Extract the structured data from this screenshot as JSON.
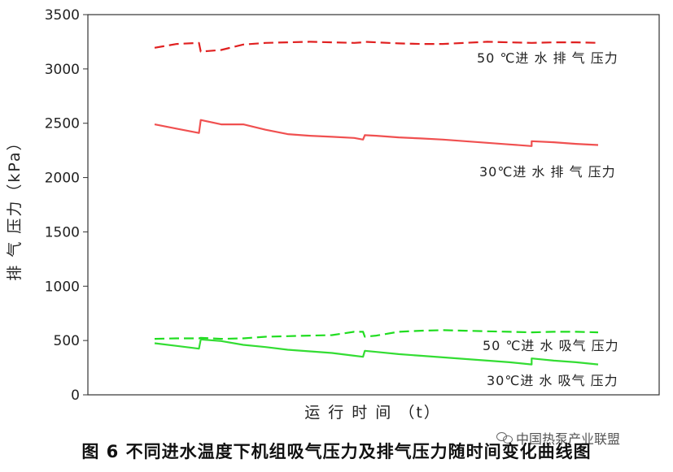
{
  "chart_data": {
    "type": "line",
    "xlabel": "运 行 时 间 （t）",
    "ylabel": "排 气 压力（kPa）",
    "ylim": [
      0,
      3500
    ],
    "yticks": [
      0,
      500,
      1000,
      1500,
      2000,
      2500,
      3000,
      3500
    ],
    "grid": false,
    "legend": "inline-labels",
    "x": [
      0,
      0.05,
      0.1,
      0.104,
      0.15,
      0.2,
      0.25,
      0.3,
      0.35,
      0.4,
      0.45,
      0.47,
      0.474,
      0.5,
      0.55,
      0.6,
      0.65,
      0.7,
      0.75,
      0.8,
      0.85,
      0.85,
      0.9,
      0.95,
      1.0
    ],
    "series": [
      {
        "name": "50 ℃进 水 排 气 压力",
        "style": "dashed",
        "color": "#e02020",
        "values": [
          3195,
          3230,
          3240,
          3160,
          3175,
          3225,
          3240,
          3245,
          3250,
          3245,
          3240,
          3245,
          3250,
          3245,
          3235,
          3230,
          3230,
          3240,
          3250,
          3245,
          3240,
          3240,
          3245,
          3245,
          3240
        ]
      },
      {
        "name": "30℃进 水 排 气 压力",
        "style": "solid",
        "color": "#f05050",
        "values": [
          2490,
          2450,
          2410,
          2530,
          2490,
          2490,
          2440,
          2400,
          2385,
          2375,
          2365,
          2350,
          2390,
          2385,
          2370,
          2360,
          2350,
          2335,
          2320,
          2305,
          2290,
          2335,
          2325,
          2310,
          2300
        ]
      },
      {
        "name": "50 ℃进 水 吸气 压力",
        "style": "dashed",
        "color": "#20dd20",
        "values": [
          515,
          520,
          520,
          525,
          515,
          520,
          535,
          540,
          545,
          550,
          580,
          580,
          535,
          545,
          580,
          590,
          595,
          590,
          585,
          580,
          575,
          575,
          580,
          580,
          575
        ]
      },
      {
        "name": "30℃进 水 吸气 压力",
        "style": "solid",
        "color": "#33dd33",
        "values": [
          475,
          450,
          425,
          510,
          495,
          460,
          440,
          415,
          400,
          385,
          360,
          350,
          405,
          395,
          375,
          360,
          345,
          330,
          315,
          300,
          280,
          335,
          315,
          300,
          280
        ]
      }
    ]
  },
  "caption": "图 6  不同进水温度下机组吸气压力及排气压力随时间变化曲线图",
  "watermark": "中国热泵产业联盟",
  "watermark_icon": "wechat-icon"
}
